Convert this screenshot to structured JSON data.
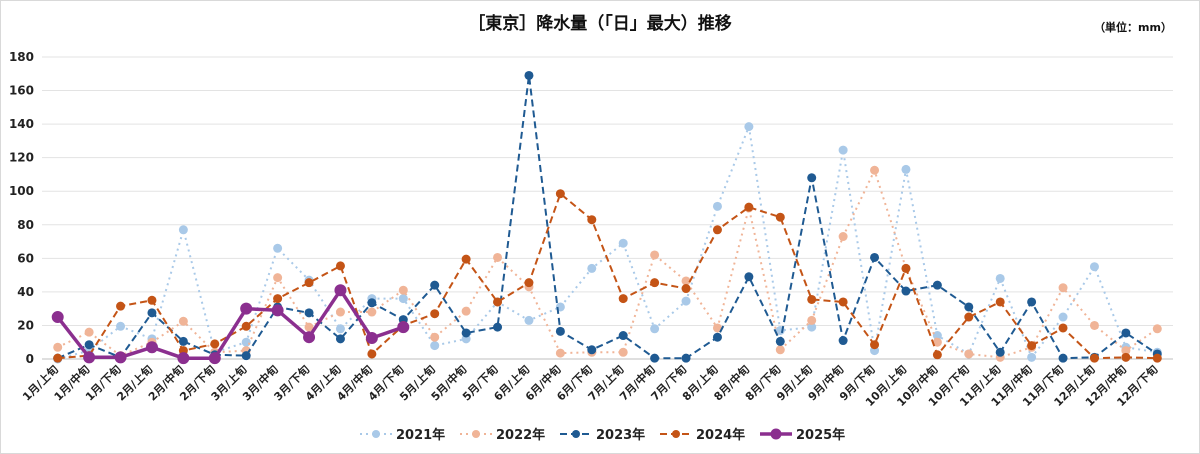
{
  "chart_data": {
    "type": "line",
    "title": "［東京］降水量（「日」最大）推移",
    "unit_note": "（単位：mm）",
    "ylim": [
      0,
      180
    ],
    "yticks": [
      0,
      20,
      40,
      60,
      80,
      100,
      120,
      140,
      160,
      180
    ],
    "grid": true,
    "legend_position": "bottom",
    "categories": [
      "1月/上旬",
      "1月/中旬",
      "1月/下旬",
      "2月/上旬",
      "2月/中旬",
      "2月/下旬",
      "3月/上旬",
      "3月/中旬",
      "3月/下旬",
      "4月/上旬",
      "4月/中旬",
      "4月/下旬",
      "5月/上旬",
      "5月/中旬",
      "5月/下旬",
      "6月/上旬",
      "6月/中旬",
      "6月/下旬",
      "7月/上旬",
      "7月/中旬",
      "7月/下旬",
      "8月/上旬",
      "8月/中旬",
      "8月/下旬",
      "9月/上旬",
      "9月/中旬",
      "9月/下旬",
      "10月/上旬",
      "10月/中旬",
      "10月/下旬",
      "11月/上旬",
      "11月/中旬",
      "11月/下旬",
      "12月/上旬",
      "12月/中旬",
      "12月/下旬"
    ],
    "series": [
      {
        "name": "2021年",
        "color": "#a9c9e8",
        "dash": "2,4",
        "width": 2,
        "marker": 4.5,
        "values": [
          0,
          5,
          19.5,
          12,
          77,
          4,
          10,
          66,
          47,
          18,
          36,
          36,
          8,
          12,
          34,
          23,
          31,
          54,
          69,
          18,
          34.5,
          91,
          138.5,
          17,
          19,
          124.5,
          5,
          113,
          14,
          3,
          48,
          1,
          25,
          55,
          7,
          4
        ]
      },
      {
        "name": "2022年",
        "color": "#f0b497",
        "dash": "2,4",
        "width": 2,
        "marker": 4.5,
        "values": [
          7,
          16,
          2,
          10,
          22.5,
          4,
          5,
          48.5,
          19,
          28,
          28,
          41,
          13,
          28.5,
          60.5,
          43,
          3.5,
          4,
          4,
          62,
          46.5,
          18.5,
          90,
          5.5,
          23,
          73,
          112.5,
          54,
          10,
          3,
          1,
          7,
          42.5,
          20,
          5,
          18
        ]
      },
      {
        "name": "2023年",
        "color": "#1f5a92",
        "dash": "7,4",
        "width": 2,
        "marker": 4.5,
        "values": [
          0.5,
          8.5,
          1,
          27.5,
          10.5,
          2.5,
          2,
          31,
          27.5,
          12,
          33.5,
          23.5,
          44,
          15.5,
          19,
          169,
          16.5,
          5.5,
          14,
          0.5,
          0.5,
          13,
          49,
          10.5,
          108,
          11,
          60.5,
          40.5,
          44,
          31,
          4,
          34,
          0.5,
          1,
          15.5,
          3
        ]
      },
      {
        "name": "2024年",
        "color": "#c45416",
        "dash": "7,4",
        "width": 2,
        "marker": 4.5,
        "values": [
          0.5,
          2,
          31.5,
          35,
          5,
          9,
          19.5,
          36,
          45.5,
          55.5,
          3,
          20,
          27,
          59.5,
          34,
          45.5,
          98.5,
          83,
          36,
          45.5,
          42,
          77,
          90.5,
          84.5,
          35.5,
          34,
          8.5,
          54,
          2.5,
          25,
          34,
          8,
          18.5,
          0.5,
          1,
          0.5
        ]
      },
      {
        "name": "2025年",
        "color": "#8b2f8f",
        "dash": "",
        "width": 3.5,
        "marker": 6,
        "values": [
          25,
          1,
          1,
          7,
          0.5,
          0.5,
          30,
          29,
          13,
          41,
          12.5,
          19,
          null,
          null,
          null,
          null,
          null,
          null,
          null,
          null,
          null,
          null,
          null,
          null,
          null,
          null,
          null,
          null,
          null,
          null,
          null,
          null,
          null,
          null,
          null,
          null
        ]
      }
    ]
  }
}
